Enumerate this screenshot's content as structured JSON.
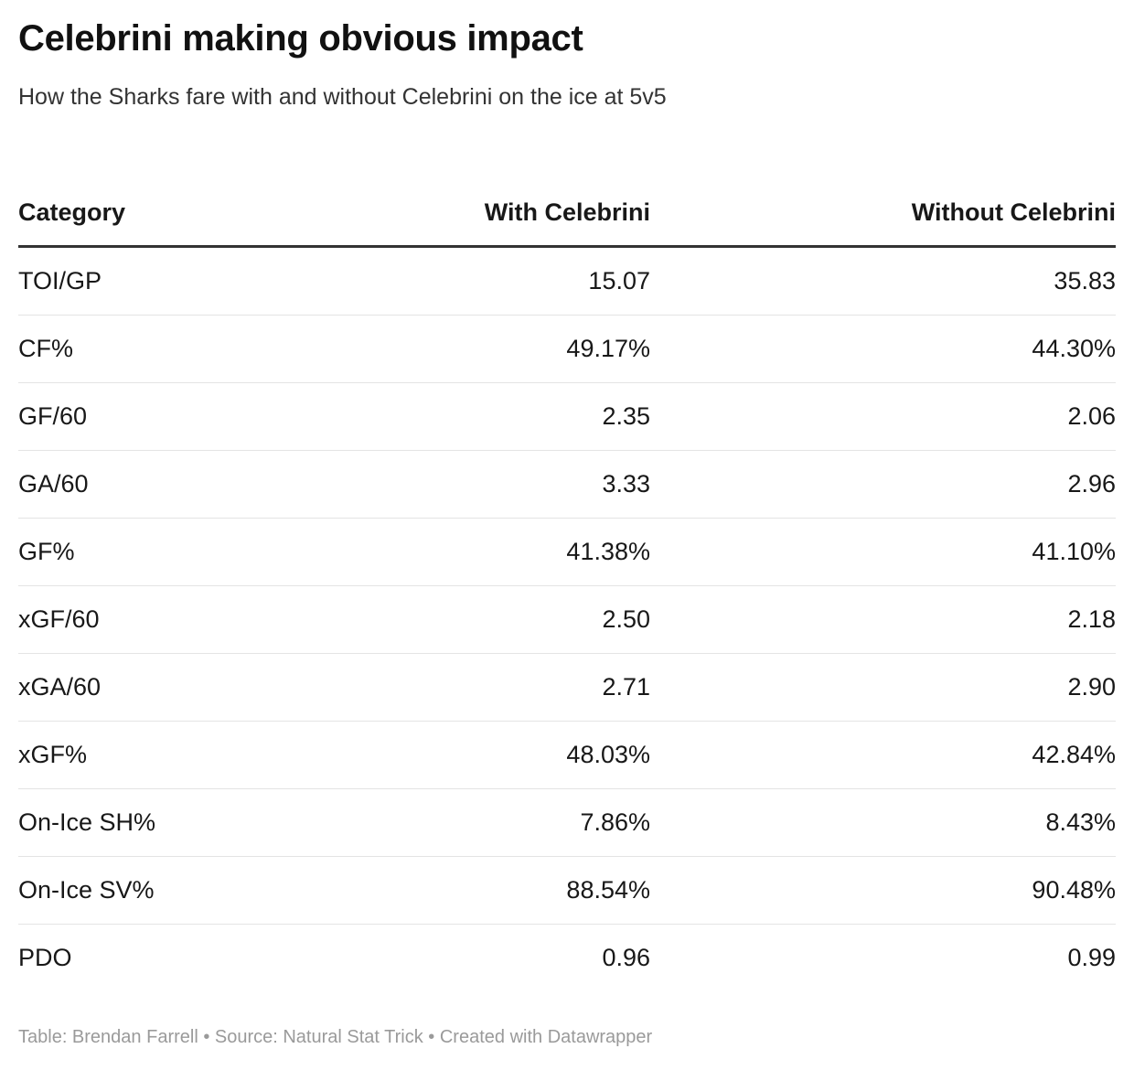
{
  "title": "Celebrini making obvious impact",
  "subtitle": "How the Sharks fare with and without Celebrini on the ice at 5v5",
  "footer": "Table: Brendan Farrell • Source: Natural Stat Trick • Created with Datawrapper",
  "chart_data": {
    "type": "table",
    "columns": [
      "Category",
      "With Celebrini",
      "Without Celebrini"
    ],
    "rows": [
      [
        "TOI/GP",
        "15.07",
        "35.83"
      ],
      [
        "CF%",
        "49.17%",
        "44.30%"
      ],
      [
        "GF/60",
        "2.35",
        "2.06"
      ],
      [
        "GA/60",
        "3.33",
        "2.96"
      ],
      [
        "GF%",
        "41.38%",
        "41.10%"
      ],
      [
        "xGF/60",
        "2.50",
        "2.18"
      ],
      [
        "xGA/60",
        "2.71",
        "2.90"
      ],
      [
        "xGF%",
        "48.03%",
        "42.84%"
      ],
      [
        "On-Ice SH%",
        "7.86%",
        "8.43%"
      ],
      [
        "On-Ice SV%",
        "88.54%",
        "90.48%"
      ],
      [
        "PDO",
        "0.96",
        "0.99"
      ]
    ]
  }
}
